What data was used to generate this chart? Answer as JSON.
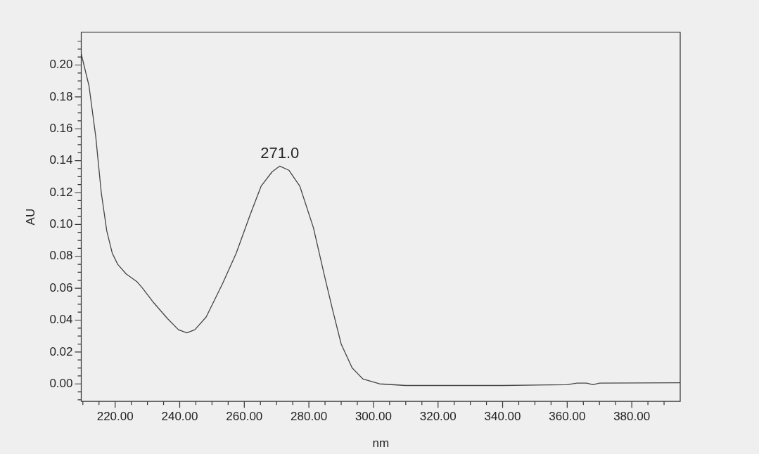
{
  "chart_data": {
    "type": "line",
    "xlabel": "nm",
    "ylabel": "AU",
    "x": [
      209.5,
      211.9,
      214.0,
      215.7,
      217.4,
      219.1,
      220.8,
      223.4,
      226.8,
      228.5,
      231.9,
      236.2,
      239.6,
      242.2,
      244.7,
      248.2,
      253.3,
      257.5,
      261.8,
      265.2,
      268.6,
      271.0,
      273.8,
      277.2,
      281.4,
      284.8,
      287.4,
      290.0,
      293.4,
      296.8,
      301.9,
      310,
      340,
      360,
      363,
      366,
      368,
      370,
      395
    ],
    "series": [
      {
        "color": "#444444",
        "values": [
          0.207,
          0.187,
          0.155,
          0.12,
          0.096,
          0.082,
          0.075,
          0.069,
          0.064,
          0.06,
          0.051,
          0.041,
          0.034,
          0.032,
          0.034,
          0.042,
          0.063,
          0.082,
          0.106,
          0.124,
          0.133,
          0.1366,
          0.134,
          0.124,
          0.098,
          0.068,
          0.046,
          0.025,
          0.01,
          0.003,
          0.0,
          -0.001,
          -0.001,
          -0.0005,
          0.0005,
          0.0005,
          -0.0005,
          0.0005,
          0.0007
        ]
      }
    ],
    "annotations": [
      {
        "text": "271.0",
        "x": 271.0,
        "y": 0.1366
      }
    ],
    "xlim": [
      209.5,
      395
    ],
    "ylim": [
      -0.011,
      0.2205
    ],
    "xticks": [
      {
        "value": 210,
        "label": null
      },
      {
        "value": 215,
        "label": null
      },
      {
        "value": 220,
        "label": "220.00"
      },
      {
        "value": 225,
        "label": null
      },
      {
        "value": 230,
        "label": null
      },
      {
        "value": 235,
        "label": null
      },
      {
        "value": 240,
        "label": "240.00"
      },
      {
        "value": 245,
        "label": null
      },
      {
        "value": 250,
        "label": null
      },
      {
        "value": 255,
        "label": null
      },
      {
        "value": 260,
        "label": "260.00"
      },
      {
        "value": 265,
        "label": null
      },
      {
        "value": 270,
        "label": null
      },
      {
        "value": 275,
        "label": null
      },
      {
        "value": 280,
        "label": "280.00"
      },
      {
        "value": 285,
        "label": null
      },
      {
        "value": 290,
        "label": null
      },
      {
        "value": 295,
        "label": null
      },
      {
        "value": 300,
        "label": "300.00"
      },
      {
        "value": 305,
        "label": null
      },
      {
        "value": 310,
        "label": null
      },
      {
        "value": 315,
        "label": null
      },
      {
        "value": 320,
        "label": "320.00"
      },
      {
        "value": 325,
        "label": null
      },
      {
        "value": 330,
        "label": null
      },
      {
        "value": 335,
        "label": null
      },
      {
        "value": 340,
        "label": "340.00"
      },
      {
        "value": 345,
        "label": null
      },
      {
        "value": 350,
        "label": null
      },
      {
        "value": 355,
        "label": null
      },
      {
        "value": 360,
        "label": "360.00"
      },
      {
        "value": 365,
        "label": null
      },
      {
        "value": 370,
        "label": null
      },
      {
        "value": 375,
        "label": null
      },
      {
        "value": 380,
        "label": "380.00"
      },
      {
        "value": 385,
        "label": null
      },
      {
        "value": 390,
        "label": null
      }
    ],
    "yticks": [
      {
        "value": -0.01,
        "label": null
      },
      {
        "value": -0.005,
        "label": null
      },
      {
        "value": 0,
        "label": "0.00"
      },
      {
        "value": 0.005,
        "label": null
      },
      {
        "value": 0.01,
        "label": null
      },
      {
        "value": 0.015,
        "label": null
      },
      {
        "value": 0.02,
        "label": "0.02"
      },
      {
        "value": 0.025,
        "label": null
      },
      {
        "value": 0.03,
        "label": null
      },
      {
        "value": 0.035,
        "label": null
      },
      {
        "value": 0.04,
        "label": "0.04"
      },
      {
        "value": 0.045,
        "label": null
      },
      {
        "value": 0.05,
        "label": null
      },
      {
        "value": 0.055,
        "label": null
      },
      {
        "value": 0.06,
        "label": "0.06"
      },
      {
        "value": 0.065,
        "label": null
      },
      {
        "value": 0.07,
        "label": null
      },
      {
        "value": 0.075,
        "label": null
      },
      {
        "value": 0.08,
        "label": "0.08"
      },
      {
        "value": 0.085,
        "label": null
      },
      {
        "value": 0.09,
        "label": null
      },
      {
        "value": 0.095,
        "label": null
      },
      {
        "value": 0.1,
        "label": "0.10"
      },
      {
        "value": 0.105,
        "label": null
      },
      {
        "value": 0.11,
        "label": null
      },
      {
        "value": 0.115,
        "label": null
      },
      {
        "value": 0.12,
        "label": "0.12"
      },
      {
        "value": 0.125,
        "label": null
      },
      {
        "value": 0.13,
        "label": null
      },
      {
        "value": 0.135,
        "label": null
      },
      {
        "value": 0.14,
        "label": "0.14"
      },
      {
        "value": 0.145,
        "label": null
      },
      {
        "value": 0.15,
        "label": null
      },
      {
        "value": 0.155,
        "label": null
      },
      {
        "value": 0.16,
        "label": "0.16"
      },
      {
        "value": 0.165,
        "label": null
      },
      {
        "value": 0.17,
        "label": null
      },
      {
        "value": 0.175,
        "label": null
      },
      {
        "value": 0.18,
        "label": "0.18"
      },
      {
        "value": 0.185,
        "label": null
      },
      {
        "value": 0.19,
        "label": null
      },
      {
        "value": 0.195,
        "label": null
      },
      {
        "value": 0.2,
        "label": "0.20"
      },
      {
        "value": 0.205,
        "label": null
      },
      {
        "value": 0.21,
        "label": null
      },
      {
        "value": 0.215,
        "label": null
      }
    ],
    "grid": false,
    "legend": false,
    "marker": "none",
    "line_style": "solid"
  }
}
